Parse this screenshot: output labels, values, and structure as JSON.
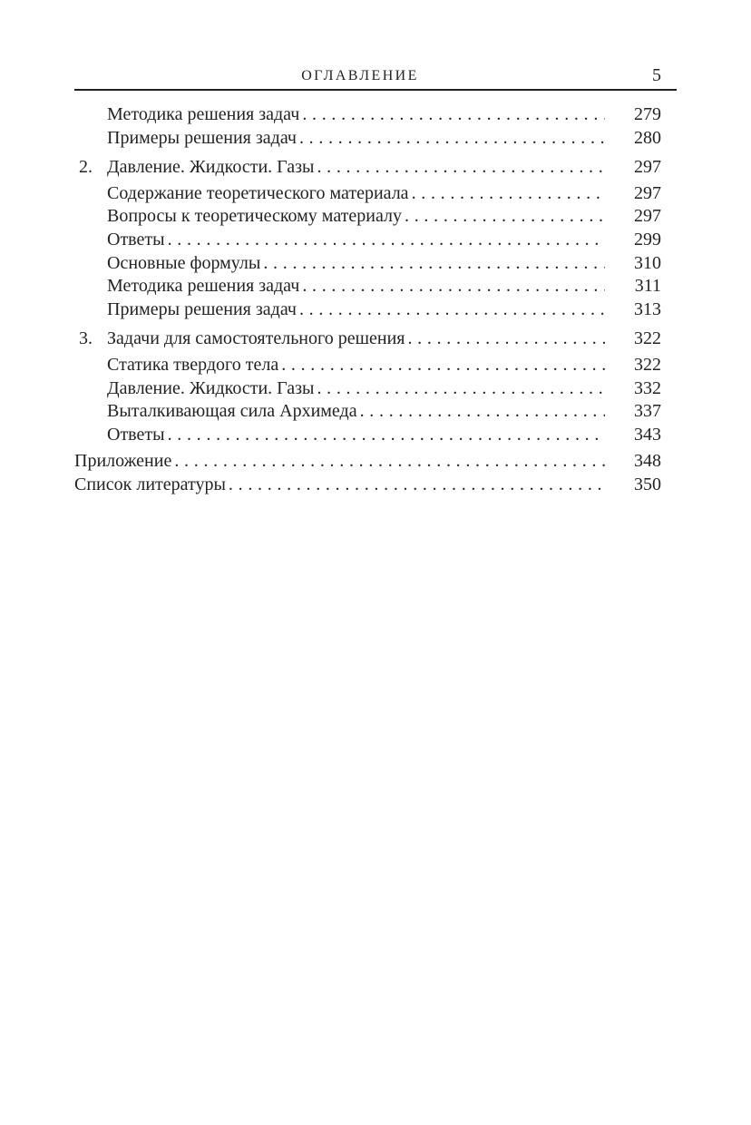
{
  "header": {
    "title": "ОГЛАВЛЕНИЕ",
    "page_number": "5"
  },
  "toc": {
    "entries": [
      {
        "level": "sub",
        "label": "Методика решения задач",
        "page": "279"
      },
      {
        "level": "sub",
        "label": "Примеры решения задач",
        "page": "280"
      },
      {
        "level": "section",
        "number": "2.",
        "label": "Давление. Жидкости. Газы",
        "page": "297"
      },
      {
        "level": "sub",
        "label": "Содержание теоретического материала",
        "page": "297"
      },
      {
        "level": "sub",
        "label": "Вопросы к теоретическому материалу",
        "page": "297"
      },
      {
        "level": "sub",
        "label": "Ответы",
        "page": "299"
      },
      {
        "level": "sub",
        "label": "Основные формулы",
        "page": "310"
      },
      {
        "level": "sub",
        "label": "Методика решения задач",
        "page": "311"
      },
      {
        "level": "sub",
        "label": "Примеры решения задач",
        "page": "313"
      },
      {
        "level": "section",
        "number": "3.",
        "label": "Задачи для самостоятельного решения",
        "page": "322"
      },
      {
        "level": "sub",
        "label": "Статика твердого тела",
        "page": "322"
      },
      {
        "level": "sub",
        "label": "Давление. Жидкости. Газы",
        "page": "332"
      },
      {
        "level": "sub",
        "label": "Выталкивающая сила Архимеда",
        "page": "337"
      },
      {
        "level": "sub",
        "label": "Ответы",
        "page": "343"
      },
      {
        "level": "top",
        "label": "Приложение",
        "page": "348"
      },
      {
        "level": "top",
        "label": "Список литературы",
        "page": "350"
      }
    ]
  },
  "colors": {
    "ink": "#232323",
    "background": "#ffffff"
  }
}
